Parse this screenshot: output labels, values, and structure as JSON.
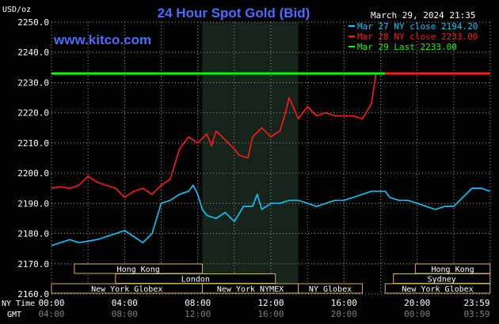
{
  "header": {
    "unit_label": "USD/oz",
    "title": "24 Hour Spot Gold (Bid)",
    "datetime": "March 29, 2024 21:35",
    "watermark": "www.kitco.com"
  },
  "legend": [
    {
      "label": "Mar 27 NY close 2194.20",
      "color": "#00ccff"
    },
    {
      "label": "Mar 28 NY close 2233.00",
      "color": "#ff1a1a"
    },
    {
      "label": "Mar 29 Last 2233.00",
      "color": "#00ff00"
    }
  ],
  "markets": [
    {
      "label": "Hong Kong",
      "start": 1.25,
      "end": 8.25,
      "row": 1
    },
    {
      "label": "London",
      "start": 3.5,
      "end": 12.25,
      "row": 2
    },
    {
      "label": "New York Globex",
      "start": 0,
      "end": 8.25,
      "row": 3
    },
    {
      "label": "New York NYMEX",
      "start": 8.25,
      "end": 13.5,
      "row": 3
    },
    {
      "label": "NY Globex",
      "start": 13.5,
      "end": 17.0,
      "row": 3
    },
    {
      "label": "Hong Kong",
      "start": 19.9,
      "end": 23.99,
      "row": 1
    },
    {
      "label": "Sydney",
      "start": 18.7,
      "end": 23.99,
      "row": 2
    },
    {
      "label": "New York Globex",
      "start": 18.25,
      "end": 23.99,
      "row": 3
    }
  ],
  "axis_titles": {
    "ny": "NY Time",
    "gmt": "GMT"
  },
  "ny_ticks": [
    "00:00",
    "04:00",
    "08:00",
    "12:00",
    "16:00",
    "20:00",
    "23:59"
  ],
  "gmt_ticks": [
    "04:00",
    "08:00",
    "12:00",
    "16:00",
    "20:00",
    "00:00",
    "03:59"
  ],
  "colors": {
    "background": "#000000",
    "grid": "#a0a0a0",
    "shade": "#15231a",
    "title": "#4a6cff",
    "axis_text": "#ffffff",
    "market_border": "#d4b25c",
    "previous": "#00ccff",
    "current": "#ff1a1a",
    "last": "#00ff00"
  },
  "chart_data": {
    "type": "line",
    "title": "24 Hour Spot Gold (Bid)",
    "ylabel": "USD/oz",
    "xlabel": "NY Time",
    "xlim": [
      0,
      24
    ],
    "ylim": [
      2160,
      2250
    ],
    "yticks": [
      2160,
      2170,
      2180,
      2190,
      2200,
      2210,
      2220,
      2230,
      2240,
      2250
    ],
    "shaded_x": [
      8.25,
      13.5
    ],
    "grid": true,
    "legend_position": "top-right",
    "series": [
      {
        "name": "Mar 27 NY close 2194.20",
        "color": "#00ccff",
        "points": [
          [
            0,
            2176
          ],
          [
            0.5,
            2177
          ],
          [
            1,
            2178
          ],
          [
            1.5,
            2177
          ],
          [
            2,
            2177.5
          ],
          [
            2.5,
            2178
          ],
          [
            3,
            2179
          ],
          [
            3.5,
            2180
          ],
          [
            4,
            2181
          ],
          [
            4.5,
            2179
          ],
          [
            5,
            2177
          ],
          [
            5.5,
            2180
          ],
          [
            6,
            2190
          ],
          [
            6.5,
            2191
          ],
          [
            7,
            2193
          ],
          [
            7.5,
            2194
          ],
          [
            7.75,
            2196
          ],
          [
            8,
            2193
          ],
          [
            8.25,
            2188
          ],
          [
            8.5,
            2186
          ],
          [
            9,
            2185
          ],
          [
            9.5,
            2187
          ],
          [
            10,
            2184
          ],
          [
            10.5,
            2189
          ],
          [
            11,
            2189
          ],
          [
            11.25,
            2193
          ],
          [
            11.5,
            2188
          ],
          [
            12,
            2190
          ],
          [
            12.5,
            2190
          ],
          [
            13,
            2191
          ],
          [
            13.5,
            2191
          ],
          [
            14,
            2190
          ],
          [
            14.5,
            2189
          ],
          [
            15,
            2190
          ],
          [
            15.5,
            2191
          ],
          [
            16,
            2191
          ],
          [
            16.5,
            2192
          ],
          [
            17,
            2193
          ],
          [
            17.5,
            2194
          ],
          [
            18,
            2194
          ],
          [
            18.25,
            2194
          ],
          [
            18.5,
            2192
          ],
          [
            19,
            2191
          ],
          [
            19.5,
            2191
          ],
          [
            20,
            2190
          ],
          [
            20.5,
            2189
          ],
          [
            21,
            2188
          ],
          [
            21.5,
            2189
          ],
          [
            22,
            2189
          ],
          [
            22.5,
            2192
          ],
          [
            23,
            2195
          ],
          [
            23.5,
            2195
          ],
          [
            23.99,
            2194
          ]
        ]
      },
      {
        "name": "Mar 28 NY close 2233.00",
        "color": "#ff1a1a",
        "points": [
          [
            0,
            2195
          ],
          [
            0.5,
            2195.5
          ],
          [
            1,
            2195
          ],
          [
            1.5,
            2196
          ],
          [
            2,
            2199
          ],
          [
            2.5,
            2197
          ],
          [
            3,
            2196
          ],
          [
            3.5,
            2195
          ],
          [
            4,
            2192
          ],
          [
            4.5,
            2194
          ],
          [
            5,
            2195
          ],
          [
            5.5,
            2193
          ],
          [
            6,
            2196
          ],
          [
            6.5,
            2198
          ],
          [
            7,
            2208
          ],
          [
            7.5,
            2212
          ],
          [
            8,
            2210
          ],
          [
            8.5,
            2213
          ],
          [
            8.75,
            2209
          ],
          [
            9,
            2214
          ],
          [
            9.5,
            2211
          ],
          [
            10,
            2208
          ],
          [
            10.25,
            2206
          ],
          [
            10.75,
            2205
          ],
          [
            11,
            2212
          ],
          [
            11.5,
            2215
          ],
          [
            12,
            2212
          ],
          [
            12.5,
            2214
          ],
          [
            12.75,
            2219
          ],
          [
            13,
            2225
          ],
          [
            13.5,
            2218
          ],
          [
            14,
            2222
          ],
          [
            14.5,
            2219
          ],
          [
            15,
            2220
          ],
          [
            15.5,
            2219
          ],
          [
            16,
            2219
          ],
          [
            16.5,
            2219
          ],
          [
            17,
            2218
          ],
          [
            17.5,
            2223
          ],
          [
            17.75,
            2233
          ]
        ]
      },
      {
        "name": "Mar 29 Last 2233.00",
        "color": "#00ff00",
        "points": [
          [
            0,
            2233
          ],
          [
            18.25,
            2233
          ]
        ]
      },
      {
        "name": "Mar 28 NY close level",
        "color": "#ff1a1a",
        "points": [
          [
            18.25,
            2233
          ],
          [
            23.99,
            2233
          ]
        ]
      }
    ]
  }
}
